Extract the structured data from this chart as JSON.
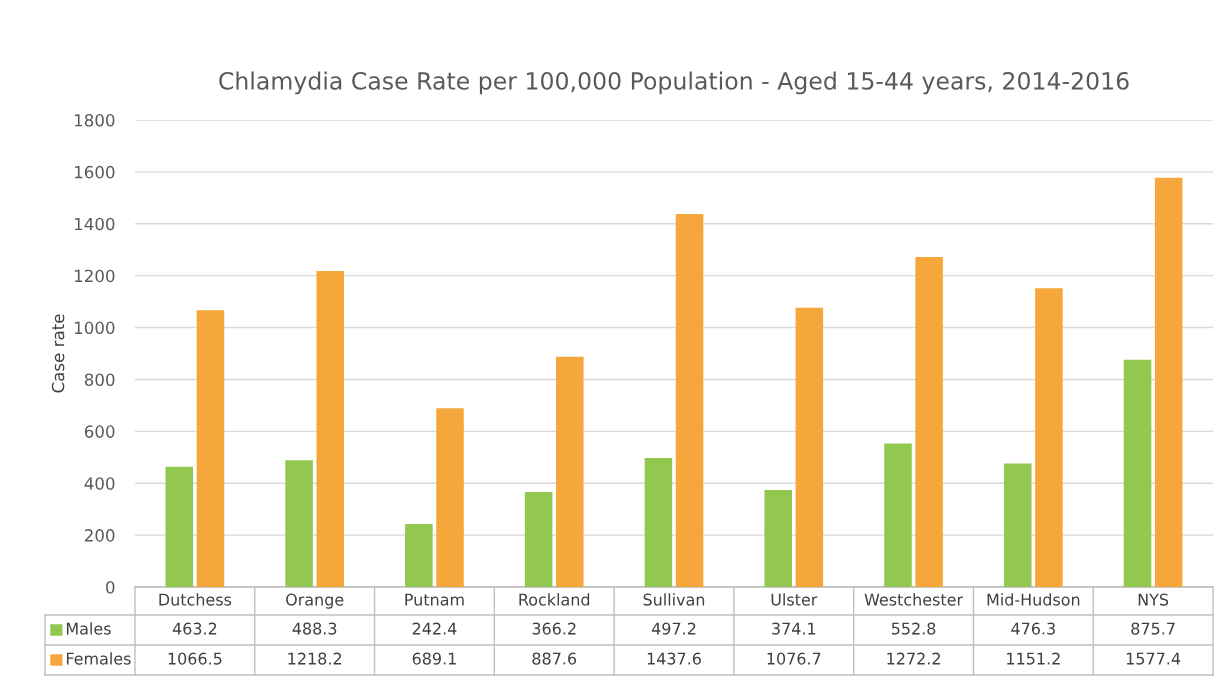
{
  "chart_data": {
    "type": "bar",
    "title": "Chlamydia Case Rate per 100,000 Population - Aged 15-44 years, 2014-2016",
    "ylabel": "Case rate",
    "categories": [
      "Dutchess",
      "Orange",
      "Putnam",
      "Rockland",
      "Sullivan",
      "Ulster",
      "Westchester",
      "Mid-Hudson",
      "NYS"
    ],
    "series": [
      {
        "name": "Males",
        "color": "#92c750",
        "values": [
          463.2,
          488.3,
          242.4,
          366.2,
          497.2,
          374.1,
          552.8,
          476.3,
          875.7
        ]
      },
      {
        "name": "Females",
        "color": "#f5a73b",
        "values": [
          1066.5,
          1218.2,
          689.1,
          887.6,
          1437.6,
          1076.7,
          1272.2,
          1151.2,
          1577.4
        ]
      }
    ],
    "ylim": [
      0,
      1800
    ],
    "yticks": [
      0,
      200,
      400,
      600,
      800,
      1000,
      1200,
      1400,
      1600,
      1800
    ],
    "grid": "y",
    "data_labels": true,
    "legend": "bottom left"
  }
}
